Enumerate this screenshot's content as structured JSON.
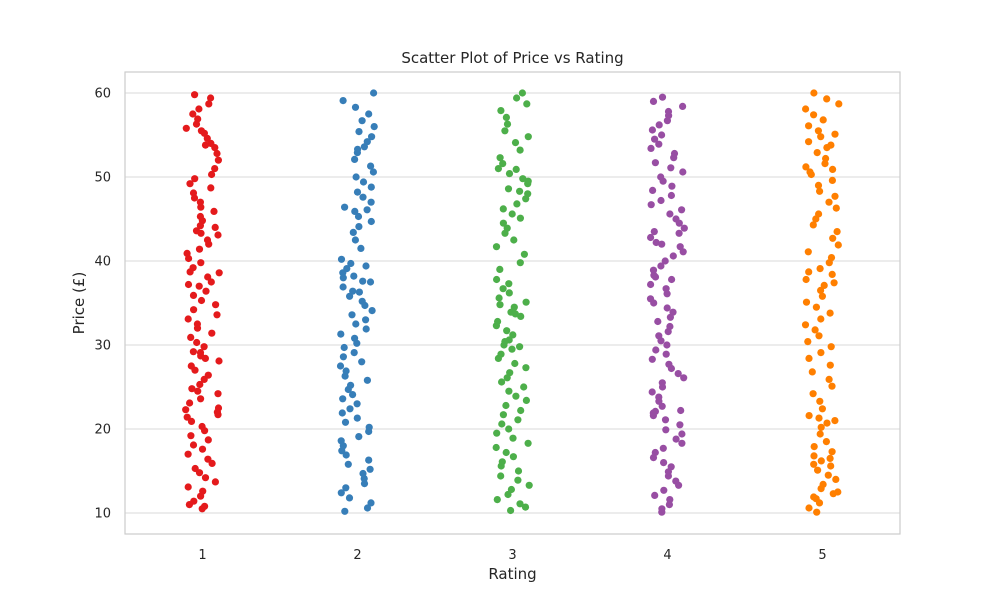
{
  "chart_data": {
    "type": "scatter",
    "title": "Scatter Plot of Price vs Rating",
    "xlabel": "Rating",
    "ylabel": "Price (£)",
    "categories": [
      "1",
      "2",
      "3",
      "4",
      "5"
    ],
    "yticks": [
      "10",
      "20",
      "30",
      "40",
      "50",
      "60"
    ],
    "ylim": [
      7.5,
      62.5
    ],
    "grid": true,
    "legend": "none",
    "series": [
      {
        "category": "1",
        "color": "#e41a1c",
        "values": [
          10.5,
          10.8,
          11.0,
          11.4,
          12.0,
          12.6,
          13.1,
          13.7,
          14.2,
          14.8,
          15.3,
          15.9,
          16.4,
          17.0,
          17.6,
          18.1,
          18.7,
          19.2,
          19.8,
          20.3,
          20.9,
          21.4,
          22.0,
          22.5,
          23.1,
          23.6,
          24.2,
          24.8,
          25.3,
          25.9,
          26.4,
          27.0,
          27.5,
          28.1,
          28.7,
          29.2,
          29.8,
          30.3,
          30.9,
          31.4,
          32.0,
          32.5,
          33.1,
          33.6,
          34.2,
          34.8,
          35.3,
          35.9,
          36.4,
          37.0,
          37.5,
          38.1,
          38.7,
          39.2,
          39.8,
          40.3,
          40.9,
          41.4,
          42.0,
          42.5,
          43.1,
          43.6,
          44.2,
          44.8,
          45.3,
          45.9,
          46.4,
          47.0,
          47.5,
          48.1,
          48.7,
          49.2,
          49.8,
          50.3,
          51.0,
          52.0,
          52.8,
          53.5,
          54.0,
          54.6,
          55.2,
          55.8,
          56.3,
          56.9,
          57.5,
          58.1,
          58.7,
          59.4,
          59.8,
          21.7,
          22.3,
          24.5,
          28.4,
          29.1,
          37.2,
          38.6,
          43.3,
          44.0,
          53.8,
          55.5
        ]
      },
      {
        "category": "2",
        "color": "#377eb8",
        "values": [
          10.2,
          10.6,
          11.2,
          11.8,
          12.4,
          13.0,
          13.5,
          14.1,
          14.7,
          15.2,
          15.8,
          16.3,
          16.9,
          17.4,
          18.0,
          18.6,
          19.1,
          19.7,
          20.2,
          20.8,
          21.3,
          21.9,
          22.4,
          23.0,
          23.6,
          24.1,
          24.7,
          25.2,
          25.8,
          26.3,
          26.9,
          27.5,
          28.0,
          28.6,
          29.1,
          29.7,
          30.2,
          30.8,
          31.3,
          31.9,
          32.5,
          33.0,
          33.6,
          34.1,
          34.7,
          35.2,
          35.8,
          36.4,
          36.9,
          37.5,
          38.0,
          38.6,
          39.1,
          39.7,
          40.2,
          41.5,
          42.5,
          43.4,
          44.1,
          44.7,
          45.3,
          45.9,
          46.4,
          47.0,
          47.6,
          48.2,
          48.8,
          49.4,
          50.0,
          50.6,
          51.3,
          52.1,
          52.9,
          53.6,
          54.2,
          54.8,
          55.4,
          56.0,
          56.7,
          57.5,
          58.3,
          59.1,
          60.0,
          36.3,
          37.6,
          38.2,
          39.4,
          46.1,
          53.3
        ]
      },
      {
        "category": "3",
        "color": "#4daf4a",
        "values": [
          10.3,
          10.7,
          11.1,
          11.6,
          12.2,
          12.8,
          13.3,
          13.9,
          14.4,
          15.0,
          15.6,
          16.1,
          16.7,
          17.2,
          17.8,
          18.3,
          18.9,
          19.5,
          20.0,
          20.6,
          21.1,
          21.7,
          22.2,
          22.8,
          23.4,
          23.9,
          24.5,
          25.0,
          25.6,
          26.1,
          26.7,
          27.3,
          27.8,
          28.4,
          28.9,
          29.5,
          30.0,
          30.6,
          31.2,
          31.7,
          32.3,
          32.8,
          33.4,
          33.9,
          34.5,
          35.1,
          35.6,
          36.2,
          36.7,
          37.3,
          37.8,
          39.0,
          39.8,
          40.8,
          41.7,
          42.5,
          43.3,
          43.9,
          44.5,
          45.1,
          45.6,
          46.2,
          46.8,
          47.4,
          48.0,
          48.6,
          49.2,
          49.8,
          50.4,
          51.0,
          51.6,
          52.3,
          53.2,
          54.1,
          54.8,
          55.5,
          56.3,
          57.1,
          57.9,
          58.7,
          59.4,
          60.0,
          29.8,
          30.4,
          33.7,
          34.8,
          48.3,
          49.5,
          50.9
        ]
      },
      {
        "category": "4",
        "color": "#984ea3",
        "values": [
          10.1,
          10.5,
          11.0,
          11.6,
          12.1,
          12.7,
          13.3,
          13.8,
          14.4,
          14.9,
          15.5,
          16.0,
          16.6,
          17.2,
          17.7,
          18.3,
          18.8,
          19.4,
          19.9,
          20.5,
          21.1,
          21.6,
          22.2,
          22.7,
          23.3,
          23.8,
          24.4,
          25.0,
          25.5,
          26.1,
          26.6,
          27.2,
          27.7,
          28.3,
          28.9,
          29.4,
          30.0,
          30.5,
          31.1,
          31.6,
          32.2,
          32.8,
          33.3,
          33.9,
          34.4,
          35.0,
          35.5,
          36.1,
          36.7,
          37.2,
          37.8,
          38.3,
          38.9,
          39.4,
          40.0,
          40.6,
          41.1,
          41.7,
          42.2,
          42.8,
          43.3,
          43.9,
          44.5,
          45.0,
          45.6,
          46.1,
          46.7,
          47.2,
          47.8,
          48.4,
          48.9,
          49.5,
          50.0,
          50.6,
          51.1,
          51.7,
          52.3,
          52.8,
          53.4,
          53.9,
          54.5,
          55.0,
          55.6,
          56.2,
          56.7,
          57.3,
          57.8,
          58.4,
          59.0,
          59.5,
          21.9,
          22.1,
          38.1,
          42.0,
          43.5
        ]
      },
      {
        "category": "5",
        "color": "#ff7f00",
        "values": [
          10.1,
          10.6,
          11.2,
          11.7,
          12.3,
          12.9,
          13.4,
          14.0,
          14.5,
          15.1,
          15.6,
          16.2,
          16.8,
          17.3,
          17.9,
          18.5,
          19.4,
          20.2,
          21.0,
          21.6,
          22.4,
          23.3,
          24.2,
          25.1,
          25.9,
          26.8,
          27.6,
          28.4,
          29.1,
          29.8,
          30.4,
          31.1,
          31.8,
          32.4,
          33.1,
          33.8,
          34.5,
          35.1,
          35.8,
          36.5,
          37.1,
          37.8,
          38.4,
          39.1,
          39.8,
          40.4,
          41.1,
          41.9,
          42.7,
          43.5,
          44.3,
          45.0,
          45.6,
          46.3,
          47.0,
          47.7,
          48.3,
          49.0,
          49.6,
          50.3,
          50.9,
          51.6,
          52.2,
          52.9,
          53.5,
          54.2,
          54.8,
          55.5,
          56.1,
          56.8,
          57.4,
          58.1,
          58.7,
          59.3,
          60.0,
          11.9,
          12.5,
          15.8,
          16.5,
          20.7,
          21.3,
          37.4,
          38.7,
          50.6,
          51.2,
          53.8,
          55.1
        ]
      }
    ]
  }
}
